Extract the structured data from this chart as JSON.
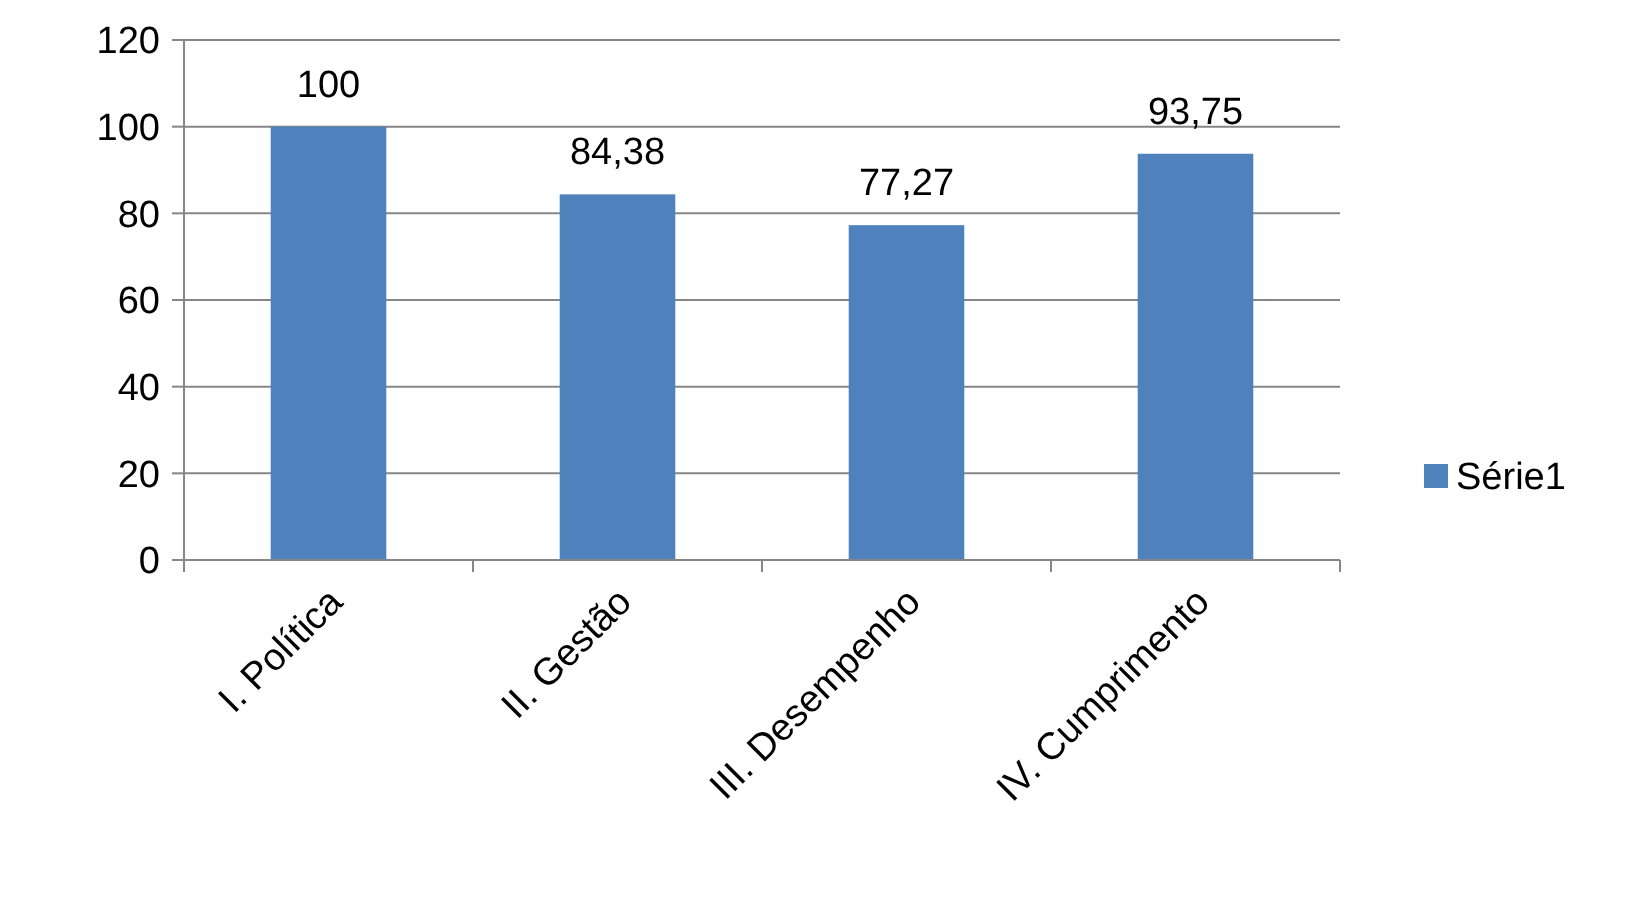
{
  "chart_data": {
    "type": "bar",
    "categories": [
      "I. Política",
      "II. Gestão",
      "III. Desempenho",
      "IV. Cumprimento"
    ],
    "series": [
      {
        "name": "Série1",
        "color": "#4f81bd",
        "values": [
          100,
          84.38,
          77.27,
          93.75
        ],
        "value_labels": [
          "100",
          "84,38",
          "77,27",
          "93,75"
        ]
      }
    ],
    "ylim": [
      0,
      120
    ],
    "yticks": [
      0,
      20,
      40,
      60,
      80,
      100,
      120
    ],
    "grid": "y",
    "legend": "right"
  }
}
